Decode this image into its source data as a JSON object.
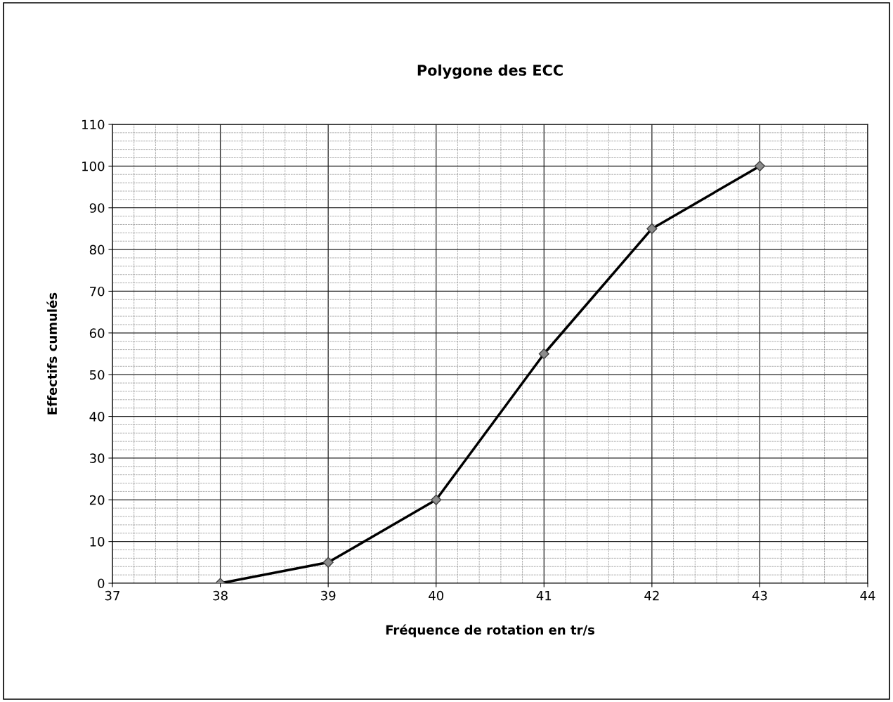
{
  "chart_data": {
    "type": "line",
    "title": "Polygone des ECC",
    "xlabel": "Fréquence de rotation en tr/s",
    "ylabel": "Effectifs cumulés",
    "x": [
      38,
      39,
      40,
      41,
      42,
      43
    ],
    "series": [
      {
        "color": "#000000",
        "values": [
          0,
          5,
          20,
          55,
          85,
          100
        ]
      }
    ],
    "xlim": [
      37,
      44
    ],
    "xticks": [
      37,
      38,
      39,
      40,
      41,
      42,
      43,
      44
    ],
    "ylim": [
      0,
      110
    ],
    "yticks": [
      0,
      10,
      20,
      30,
      40,
      50,
      60,
      70,
      80,
      90,
      100,
      110
    ],
    "grid": true,
    "marker": "diamond",
    "line_style": "solid",
    "legend": false
  }
}
